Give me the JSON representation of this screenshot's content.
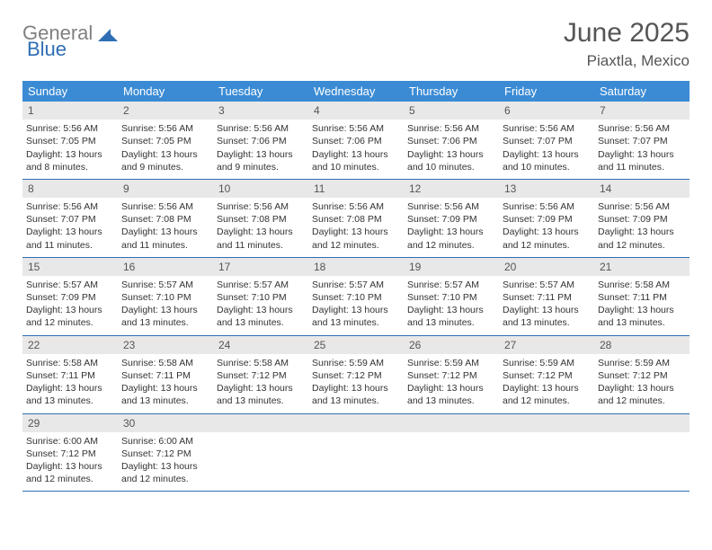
{
  "logo": {
    "gray": "General",
    "blue": "Blue"
  },
  "title": {
    "month": "June 2025",
    "location": "Piaxtla, Mexico"
  },
  "colors": {
    "header_bg": "#3b8bd4",
    "border": "#2f6eb5",
    "daynum_bg": "#e8e8e8",
    "logo_gray": "#808080",
    "logo_blue": "#2f6eb5"
  },
  "weekdays": [
    "Sunday",
    "Monday",
    "Tuesday",
    "Wednesday",
    "Thursday",
    "Friday",
    "Saturday"
  ],
  "weeks": [
    [
      {
        "n": "1",
        "sr": "5:56 AM",
        "ss": "7:05 PM",
        "dh": "13",
        "dm": "8"
      },
      {
        "n": "2",
        "sr": "5:56 AM",
        "ss": "7:05 PM",
        "dh": "13",
        "dm": "9"
      },
      {
        "n": "3",
        "sr": "5:56 AM",
        "ss": "7:06 PM",
        "dh": "13",
        "dm": "9"
      },
      {
        "n": "4",
        "sr": "5:56 AM",
        "ss": "7:06 PM",
        "dh": "13",
        "dm": "10"
      },
      {
        "n": "5",
        "sr": "5:56 AM",
        "ss": "7:06 PM",
        "dh": "13",
        "dm": "10"
      },
      {
        "n": "6",
        "sr": "5:56 AM",
        "ss": "7:07 PM",
        "dh": "13",
        "dm": "10"
      },
      {
        "n": "7",
        "sr": "5:56 AM",
        "ss": "7:07 PM",
        "dh": "13",
        "dm": "11"
      }
    ],
    [
      {
        "n": "8",
        "sr": "5:56 AM",
        "ss": "7:07 PM",
        "dh": "13",
        "dm": "11"
      },
      {
        "n": "9",
        "sr": "5:56 AM",
        "ss": "7:08 PM",
        "dh": "13",
        "dm": "11"
      },
      {
        "n": "10",
        "sr": "5:56 AM",
        "ss": "7:08 PM",
        "dh": "13",
        "dm": "11"
      },
      {
        "n": "11",
        "sr": "5:56 AM",
        "ss": "7:08 PM",
        "dh": "13",
        "dm": "12"
      },
      {
        "n": "12",
        "sr": "5:56 AM",
        "ss": "7:09 PM",
        "dh": "13",
        "dm": "12"
      },
      {
        "n": "13",
        "sr": "5:56 AM",
        "ss": "7:09 PM",
        "dh": "13",
        "dm": "12"
      },
      {
        "n": "14",
        "sr": "5:56 AM",
        "ss": "7:09 PM",
        "dh": "13",
        "dm": "12"
      }
    ],
    [
      {
        "n": "15",
        "sr": "5:57 AM",
        "ss": "7:09 PM",
        "dh": "13",
        "dm": "12"
      },
      {
        "n": "16",
        "sr": "5:57 AM",
        "ss": "7:10 PM",
        "dh": "13",
        "dm": "13"
      },
      {
        "n": "17",
        "sr": "5:57 AM",
        "ss": "7:10 PM",
        "dh": "13",
        "dm": "13"
      },
      {
        "n": "18",
        "sr": "5:57 AM",
        "ss": "7:10 PM",
        "dh": "13",
        "dm": "13"
      },
      {
        "n": "19",
        "sr": "5:57 AM",
        "ss": "7:10 PM",
        "dh": "13",
        "dm": "13"
      },
      {
        "n": "20",
        "sr": "5:57 AM",
        "ss": "7:11 PM",
        "dh": "13",
        "dm": "13"
      },
      {
        "n": "21",
        "sr": "5:58 AM",
        "ss": "7:11 PM",
        "dh": "13",
        "dm": "13"
      }
    ],
    [
      {
        "n": "22",
        "sr": "5:58 AM",
        "ss": "7:11 PM",
        "dh": "13",
        "dm": "13"
      },
      {
        "n": "23",
        "sr": "5:58 AM",
        "ss": "7:11 PM",
        "dh": "13",
        "dm": "13"
      },
      {
        "n": "24",
        "sr": "5:58 AM",
        "ss": "7:12 PM",
        "dh": "13",
        "dm": "13"
      },
      {
        "n": "25",
        "sr": "5:59 AM",
        "ss": "7:12 PM",
        "dh": "13",
        "dm": "13"
      },
      {
        "n": "26",
        "sr": "5:59 AM",
        "ss": "7:12 PM",
        "dh": "13",
        "dm": "13"
      },
      {
        "n": "27",
        "sr": "5:59 AM",
        "ss": "7:12 PM",
        "dh": "13",
        "dm": "12"
      },
      {
        "n": "28",
        "sr": "5:59 AM",
        "ss": "7:12 PM",
        "dh": "13",
        "dm": "12"
      }
    ],
    [
      {
        "n": "29",
        "sr": "6:00 AM",
        "ss": "7:12 PM",
        "dh": "13",
        "dm": "12"
      },
      {
        "n": "30",
        "sr": "6:00 AM",
        "ss": "7:12 PM",
        "dh": "13",
        "dm": "12"
      },
      {
        "empty": true
      },
      {
        "empty": true
      },
      {
        "empty": true
      },
      {
        "empty": true
      },
      {
        "empty": true
      }
    ]
  ],
  "labels": {
    "sunrise": "Sunrise:",
    "sunset": "Sunset:",
    "daylight_prefix": "Daylight:",
    "hours_word": "hours",
    "and_word": "and",
    "minutes_word": "minutes."
  }
}
